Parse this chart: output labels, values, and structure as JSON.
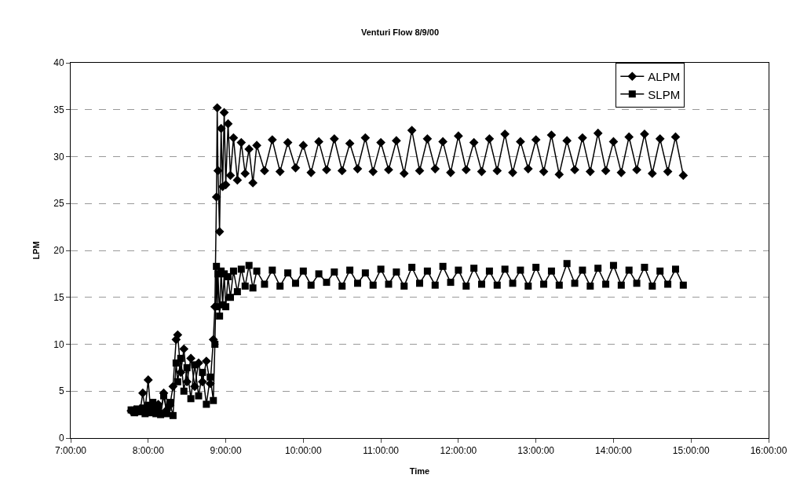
{
  "chart_data": {
    "type": "line",
    "title": "Venturi Flow 8/9/00",
    "xlabel": "Time",
    "ylabel": "LPM",
    "xlim": [
      7,
      16
    ],
    "xticks": [
      {
        "value": 7,
        "label": "7:00:00"
      },
      {
        "value": 8,
        "label": "8:00:00"
      },
      {
        "value": 9,
        "label": "9:00:00"
      },
      {
        "value": 10,
        "label": "10:00:00"
      },
      {
        "value": 11,
        "label": "11:00:00"
      },
      {
        "value": 12,
        "label": "12:00:00"
      },
      {
        "value": 13,
        "label": "13:00:00"
      },
      {
        "value": 14,
        "label": "14:00:00"
      },
      {
        "value": 15,
        "label": "15:00:00"
      },
      {
        "value": 16,
        "label": "16:00:00"
      }
    ],
    "ylim": [
      0,
      40
    ],
    "yticks": [
      0,
      5,
      10,
      15,
      20,
      25,
      30,
      35,
      40
    ],
    "grid": "y",
    "legend": "top right",
    "line_style": "solid",
    "series": [
      {
        "name": "ALPM",
        "color": "#000000",
        "marker": "diamond",
        "x": [
          7.78,
          7.82,
          7.86,
          7.9,
          7.93,
          7.96,
          8.0,
          8.03,
          8.06,
          8.1,
          8.13,
          8.16,
          8.2,
          8.24,
          8.28,
          8.32,
          8.36,
          8.38,
          8.42,
          8.46,
          8.5,
          8.55,
          8.6,
          8.65,
          8.7,
          8.75,
          8.8,
          8.84,
          8.86,
          8.88,
          8.89,
          8.9,
          8.92,
          8.94,
          8.96,
          8.98,
          9.0,
          9.03,
          9.06,
          9.1,
          9.15,
          9.2,
          9.25,
          9.3,
          9.35,
          9.4,
          9.5,
          9.6,
          9.7,
          9.8,
          9.9,
          10.0,
          10.1,
          10.2,
          10.3,
          10.4,
          10.5,
          10.6,
          10.7,
          10.8,
          10.9,
          11.0,
          11.1,
          11.2,
          11.3,
          11.4,
          11.5,
          11.6,
          11.7,
          11.8,
          11.9,
          12.0,
          12.1,
          12.2,
          12.3,
          12.4,
          12.5,
          12.6,
          12.7,
          12.8,
          12.9,
          13.0,
          13.1,
          13.2,
          13.3,
          13.4,
          13.5,
          13.6,
          13.7,
          13.8,
          13.9,
          14.0,
          14.1,
          14.2,
          14.3,
          14.4,
          14.5,
          14.6,
          14.7,
          14.8,
          14.9
        ],
        "values": [
          2.9,
          3.0,
          2.8,
          3.1,
          4.8,
          3.0,
          6.2,
          3.0,
          3.3,
          2.8,
          3.6,
          2.7,
          4.8,
          3.0,
          3.5,
          5.5,
          10.5,
          11.0,
          7.0,
          9.5,
          6.0,
          8.5,
          5.5,
          8.0,
          6.0,
          8.2,
          5.8,
          10.5,
          14.0,
          25.7,
          35.2,
          28.5,
          22.0,
          33.0,
          26.8,
          34.7,
          27.0,
          33.5,
          28.0,
          32.0,
          27.5,
          31.5,
          28.2,
          30.8,
          27.2,
          31.2,
          28.5,
          31.8,
          28.4,
          31.5,
          28.8,
          31.2,
          28.3,
          31.6,
          28.6,
          31.9,
          28.5,
          31.4,
          28.7,
          32.0,
          28.4,
          31.5,
          28.6,
          31.7,
          28.2,
          32.8,
          28.5,
          31.9,
          28.7,
          31.6,
          28.3,
          32.2,
          28.6,
          31.5,
          28.4,
          31.9,
          28.5,
          32.4,
          28.3,
          31.6,
          28.7,
          31.8,
          28.4,
          32.3,
          28.1,
          31.7,
          28.6,
          32.0,
          28.4,
          32.5,
          28.5,
          31.6,
          28.3,
          32.1,
          28.6,
          32.4,
          28.2,
          31.9,
          28.4,
          32.1,
          28.0
        ]
      },
      {
        "name": "SLPM",
        "color": "#000000",
        "marker": "square",
        "x": [
          7.78,
          7.82,
          7.86,
          7.9,
          7.93,
          7.96,
          8.0,
          8.03,
          8.06,
          8.1,
          8.13,
          8.16,
          8.2,
          8.24,
          8.28,
          8.32,
          8.36,
          8.38,
          8.42,
          8.46,
          8.5,
          8.55,
          8.6,
          8.65,
          8.7,
          8.75,
          8.8,
          8.84,
          8.86,
          8.88,
          8.89,
          8.9,
          8.92,
          8.94,
          8.96,
          8.98,
          9.0,
          9.03,
          9.06,
          9.1,
          9.15,
          9.2,
          9.25,
          9.3,
          9.35,
          9.4,
          9.5,
          9.6,
          9.7,
          9.8,
          9.9,
          10.0,
          10.1,
          10.2,
          10.3,
          10.4,
          10.5,
          10.6,
          10.7,
          10.8,
          10.9,
          11.0,
          11.1,
          11.2,
          11.3,
          11.4,
          11.5,
          11.6,
          11.7,
          11.8,
          11.9,
          12.0,
          12.1,
          12.2,
          12.3,
          12.4,
          12.5,
          12.6,
          12.7,
          12.8,
          12.9,
          13.0,
          13.1,
          13.2,
          13.3,
          13.4,
          13.5,
          13.6,
          13.7,
          13.8,
          13.9,
          14.0,
          14.1,
          14.2,
          14.3,
          14.4,
          14.5,
          14.6,
          14.7,
          14.8,
          14.9
        ],
        "values": [
          3.0,
          2.7,
          3.1,
          2.8,
          3.2,
          2.6,
          3.5,
          2.7,
          3.8,
          2.6,
          3.2,
          2.5,
          4.5,
          2.6,
          3.8,
          2.4,
          8.0,
          6.0,
          8.5,
          5.0,
          7.5,
          4.2,
          7.8,
          4.5,
          7.0,
          3.6,
          6.5,
          4.0,
          10.0,
          18.3,
          14.0,
          17.5,
          13.0,
          17.8,
          14.2,
          17.5,
          14.0,
          17.2,
          15.0,
          17.8,
          15.6,
          18.0,
          16.2,
          18.4,
          16.0,
          17.8,
          16.4,
          17.9,
          16.2,
          17.6,
          16.5,
          17.8,
          16.3,
          17.5,
          16.6,
          17.7,
          16.2,
          17.9,
          16.5,
          17.6,
          16.3,
          18.0,
          16.4,
          17.7,
          16.2,
          18.2,
          16.5,
          17.8,
          16.3,
          18.3,
          16.6,
          17.9,
          16.2,
          18.1,
          16.4,
          17.8,
          16.3,
          18.0,
          16.5,
          17.9,
          16.2,
          18.2,
          16.4,
          17.8,
          16.3,
          18.6,
          16.5,
          17.9,
          16.2,
          18.1,
          16.4,
          18.4,
          16.3,
          17.9,
          16.5,
          18.2,
          16.2,
          17.8,
          16.4,
          18.0,
          16.3
        ]
      }
    ]
  }
}
